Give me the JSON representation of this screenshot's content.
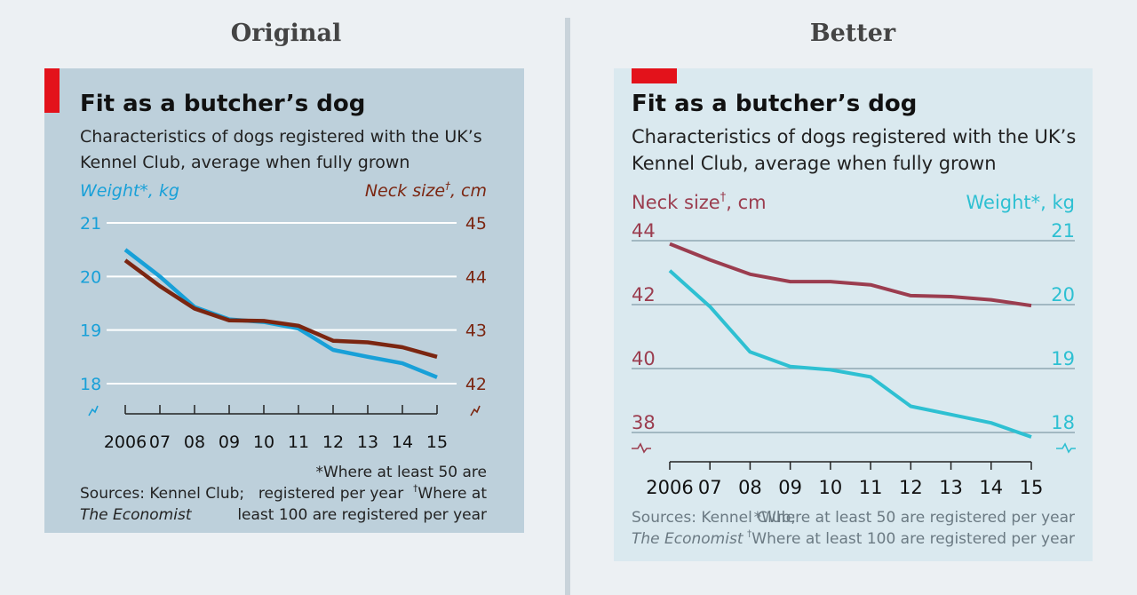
{
  "headings": {
    "left": "Original",
    "right": "Better"
  },
  "chart_data": [
    {
      "type": "line",
      "title": "Fit as a butcher’s dog",
      "subtitle_line1": "Characteristics of dogs registered with the UK’s",
      "subtitle_line2": "Kennel Club, average when fully grown",
      "categories": [
        "2006",
        "07",
        "08",
        "09",
        "10",
        "11",
        "12",
        "13",
        "14",
        "15"
      ],
      "left_axis": {
        "label": "Weight*, kg",
        "ticks": [
          "21",
          "20",
          "19",
          "18"
        ],
        "ylim": [
          18,
          21
        ]
      },
      "right_axis": {
        "label_main": "Neck size",
        "label_sup": "†",
        "label_unit": ", cm",
        "ticks": [
          "45",
          "44",
          "43",
          "42"
        ],
        "ylim": [
          42,
          45
        ]
      },
      "series": [
        {
          "name": "Weight*, kg",
          "axis": "left",
          "color": "#18a0d8",
          "values": [
            20.5,
            20.0,
            19.43,
            19.2,
            19.15,
            19.03,
            18.63,
            18.5,
            18.38,
            18.12
          ]
        },
        {
          "name": "Neck size†, cm",
          "axis": "right",
          "color": "#7b2611",
          "values": [
            44.3,
            43.82,
            43.4,
            43.18,
            43.17,
            43.08,
            42.8,
            42.77,
            42.68,
            42.5
          ]
        }
      ],
      "axis_break": true,
      "sources_line1": "Sources: Kennel Club;",
      "sources_line2": "The Economist",
      "note_line1": "*Where at least 50 are",
      "note_line2": "registered per year",
      "note_line2_sup": "†",
      "note_line2_tail": "Where at",
      "note_line3": "least 100 are registered per year",
      "colors": {
        "background": "#bdd0db",
        "gridline": "#ffffff",
        "weight_label": "#18a0d8",
        "neck_label": "#7b2611",
        "accent": "#e3121b"
      }
    },
    {
      "type": "line",
      "title": "Fit as a butcher’s dog",
      "subtitle_line1": "Characteristics of dogs registered with the UK’s",
      "subtitle_line2": "Kennel Club, average when fully grown",
      "categories": [
        "2006",
        "07",
        "08",
        "09",
        "10",
        "11",
        "12",
        "13",
        "14",
        "15"
      ],
      "left_axis": {
        "label_main": "Neck size",
        "label_sup": "†",
        "label_unit": ", cm",
        "ticks": [
          "44",
          "42",
          "40",
          "38"
        ],
        "ylim": [
          38,
          44
        ]
      },
      "right_axis": {
        "label": "Weight*, kg",
        "ticks": [
          "21",
          "20",
          "19",
          "18"
        ],
        "ylim": [
          18,
          21
        ]
      },
      "series": [
        {
          "name": "Neck size†, cm",
          "axis": "left",
          "color": "#9b3d4f",
          "values": [
            43.9,
            43.4,
            42.95,
            42.72,
            42.72,
            42.62,
            42.28,
            42.25,
            42.15,
            41.97
          ]
        },
        {
          "name": "Weight*, kg",
          "axis": "right",
          "color": "#2ec0d2",
          "values": [
            20.53,
            19.97,
            19.26,
            19.03,
            18.98,
            18.87,
            18.41,
            18.28,
            18.15,
            17.93
          ]
        }
      ],
      "axis_break": true,
      "sources_line1": "Sources: Kennel Club;",
      "sources_line2": "The Economist",
      "note_line1": "*Where at least 50 are registered per year",
      "note_line2_sup": "†",
      "note_line2": "Where at least 100 are registered per year",
      "colors": {
        "background": "#dae9ef",
        "gridline": "#8fa7b3",
        "neck_label": "#9b3d4f",
        "weight_label": "#2ec0d2",
        "accent": "#e3121b"
      }
    }
  ]
}
